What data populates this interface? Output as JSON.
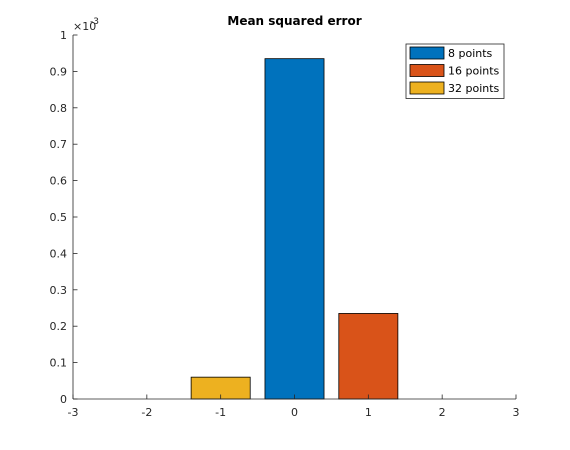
{
  "chart_data": {
    "type": "bar",
    "title": "Mean squared error",
    "xlabel": "",
    "ylabel": "",
    "xlim": [
      -3,
      3
    ],
    "ylim": [
      0,
      1
    ],
    "y_exponent_label": "×10",
    "y_exponent_power": "-3",
    "x_ticks": [
      -3,
      -2,
      -1,
      0,
      1,
      2,
      3
    ],
    "y_ticks": [
      0,
      0.1,
      0.2,
      0.3,
      0.4,
      0.5,
      0.6,
      0.7,
      0.8,
      0.9,
      1
    ],
    "grid": false,
    "legend_position": "top-right",
    "series": [
      {
        "name": "8 points",
        "x": 0,
        "value": 0.935,
        "color": "#0072BD"
      },
      {
        "name": "16 points",
        "x": 1,
        "value": 0.235,
        "color": "#D95319"
      },
      {
        "name": "32 points",
        "x": -1,
        "value": 0.06,
        "color": "#EDB120"
      }
    ]
  }
}
